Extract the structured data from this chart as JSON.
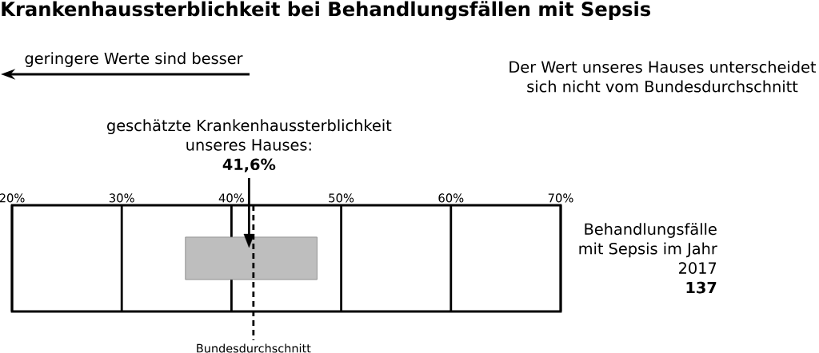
{
  "chart_data": {
    "type": "bar",
    "orientation": "horizontal",
    "title": "Krankenhaussterblichkeit bei Behandlungsfällen mit Sepsis",
    "categories": [
      null
    ],
    "series": [
      {
        "color": "#bebebe",
        "base": [
          35.8
        ],
        "values": [
          12.0
        ]
      },
      {
        "type": "scatter",
        "color": "#000000",
        "marker": "triangle",
        "values": [
          41.6
        ]
      }
    ],
    "xlim": [
      20,
      70
    ],
    "xticks": [
      {
        "value": 20,
        "label": "20%"
      },
      {
        "value": 30,
        "label": "30%"
      },
      {
        "value": 40,
        "label": "40%"
      },
      {
        "value": 50,
        "label": "50%"
      },
      {
        "value": 60,
        "label": "60%"
      },
      {
        "value": 70,
        "label": "70%"
      }
    ],
    "grid": "x",
    "ref_lines": [
      {
        "axis": "x",
        "value": 42.0,
        "label": "Bundesdurchschnitt",
        "line_style": "dashed"
      }
    ],
    "annotations": [
      {
        "text": "geschätzte Krankenhaussterblichkeit unseres Hauses: **41,6%**",
        "x": 41.6
      },
      "geringere Werte sind besser",
      "Der Wert unseres Hauses unterscheidet sich nicht vom Bundesdurchschnitt",
      "Behandlungsfälle mit Sepsis im Jahr 2017 **137**"
    ]
  }
}
